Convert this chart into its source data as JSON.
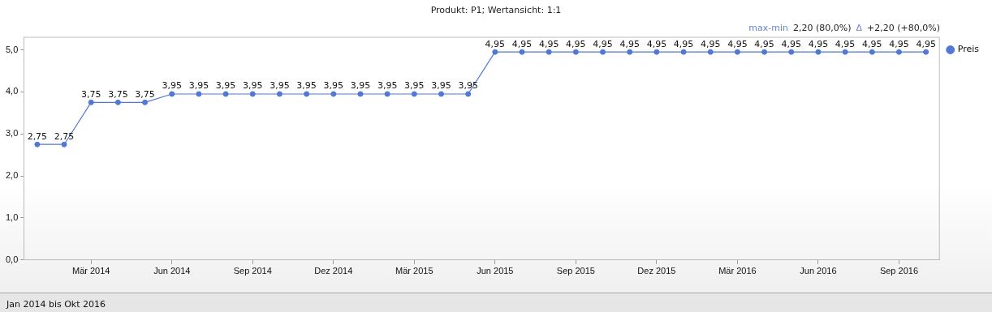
{
  "chart_data": {
    "type": "line",
    "title": "Produkt: P1; Wertansicht: 1:1",
    "annotations": [
      "max-min",
      "2,20 (80,0%)",
      "Δ",
      "+2,20 (+80,0%)",
      "Jan 2014 bis Okt 2016"
    ],
    "x": [
      "2014-01",
      "2014-02",
      "2014-03",
      "2014-04",
      "2014-05",
      "2014-06",
      "2014-07",
      "2014-08",
      "2014-09",
      "2014-10",
      "2014-11",
      "2014-12",
      "2015-01",
      "2015-02",
      "2015-03",
      "2015-04",
      "2015-05",
      "2015-06",
      "2015-07",
      "2015-08",
      "2015-09",
      "2015-10",
      "2015-11",
      "2015-12",
      "2016-01",
      "2016-02",
      "2016-03",
      "2016-04",
      "2016-05",
      "2016-06",
      "2016-07",
      "2016-08",
      "2016-09",
      "2016-10"
    ],
    "series": [
      {
        "name": "Preis",
        "color": "#4f78d8",
        "values": [
          2.75,
          2.75,
          3.75,
          3.75,
          3.75,
          3.95,
          3.95,
          3.95,
          3.95,
          3.95,
          3.95,
          3.95,
          3.95,
          3.95,
          3.95,
          3.95,
          3.95,
          4.95,
          4.95,
          4.95,
          4.95,
          4.95,
          4.95,
          4.95,
          4.95,
          4.95,
          4.95,
          4.95,
          4.95,
          4.95,
          4.95,
          4.95,
          4.95,
          4.95
        ],
        "value_labels": [
          "2,75",
          "2,75",
          "3,75",
          "3,75",
          "3,75",
          "3,95",
          "3,95",
          "3,95",
          "3,95",
          "3,95",
          "3,95",
          "3,95",
          "3,95",
          "3,95",
          "3,95",
          "3,95",
          "3,95",
          "4,95",
          "4,95",
          "4,95",
          "4,95",
          "4,95",
          "4,95",
          "4,95",
          "4,95",
          "4,95",
          "4,95",
          "4,95",
          "4,95",
          "4,95",
          "4,95",
          "4,95",
          "4,95",
          "4,95"
        ]
      }
    ],
    "xlim": [
      "2013-12-16",
      "2016-10-16"
    ],
    "xticks": [
      {
        "value": "2014-03",
        "label": "Mär 2014"
      },
      {
        "value": "2014-06",
        "label": "Jun 2014"
      },
      {
        "value": "2014-09",
        "label": "Sep 2014"
      },
      {
        "value": "2014-12",
        "label": "Dez 2014"
      },
      {
        "value": "2015-03",
        "label": "Mär 2015"
      },
      {
        "value": "2015-06",
        "label": "Jun 2015"
      },
      {
        "value": "2015-09",
        "label": "Sep 2015"
      },
      {
        "value": "2015-12",
        "label": "Dez 2015"
      },
      {
        "value": "2016-03",
        "label": "Mär 2016"
      },
      {
        "value": "2016-06",
        "label": "Jun 2016"
      },
      {
        "value": "2016-09",
        "label": "Sep 2016"
      }
    ],
    "ylim": [
      0,
      5.3
    ],
    "yticks": [
      {
        "value": 0,
        "label": "0,0"
      },
      {
        "value": 1,
        "label": "1,0"
      },
      {
        "value": 2,
        "label": "2,0"
      },
      {
        "value": 3,
        "label": "3,0"
      },
      {
        "value": 4,
        "label": "4,0"
      },
      {
        "value": 5,
        "label": "5,0"
      }
    ],
    "grid": false,
    "legend": "right",
    "marker": "circle",
    "line_style": "solid"
  }
}
